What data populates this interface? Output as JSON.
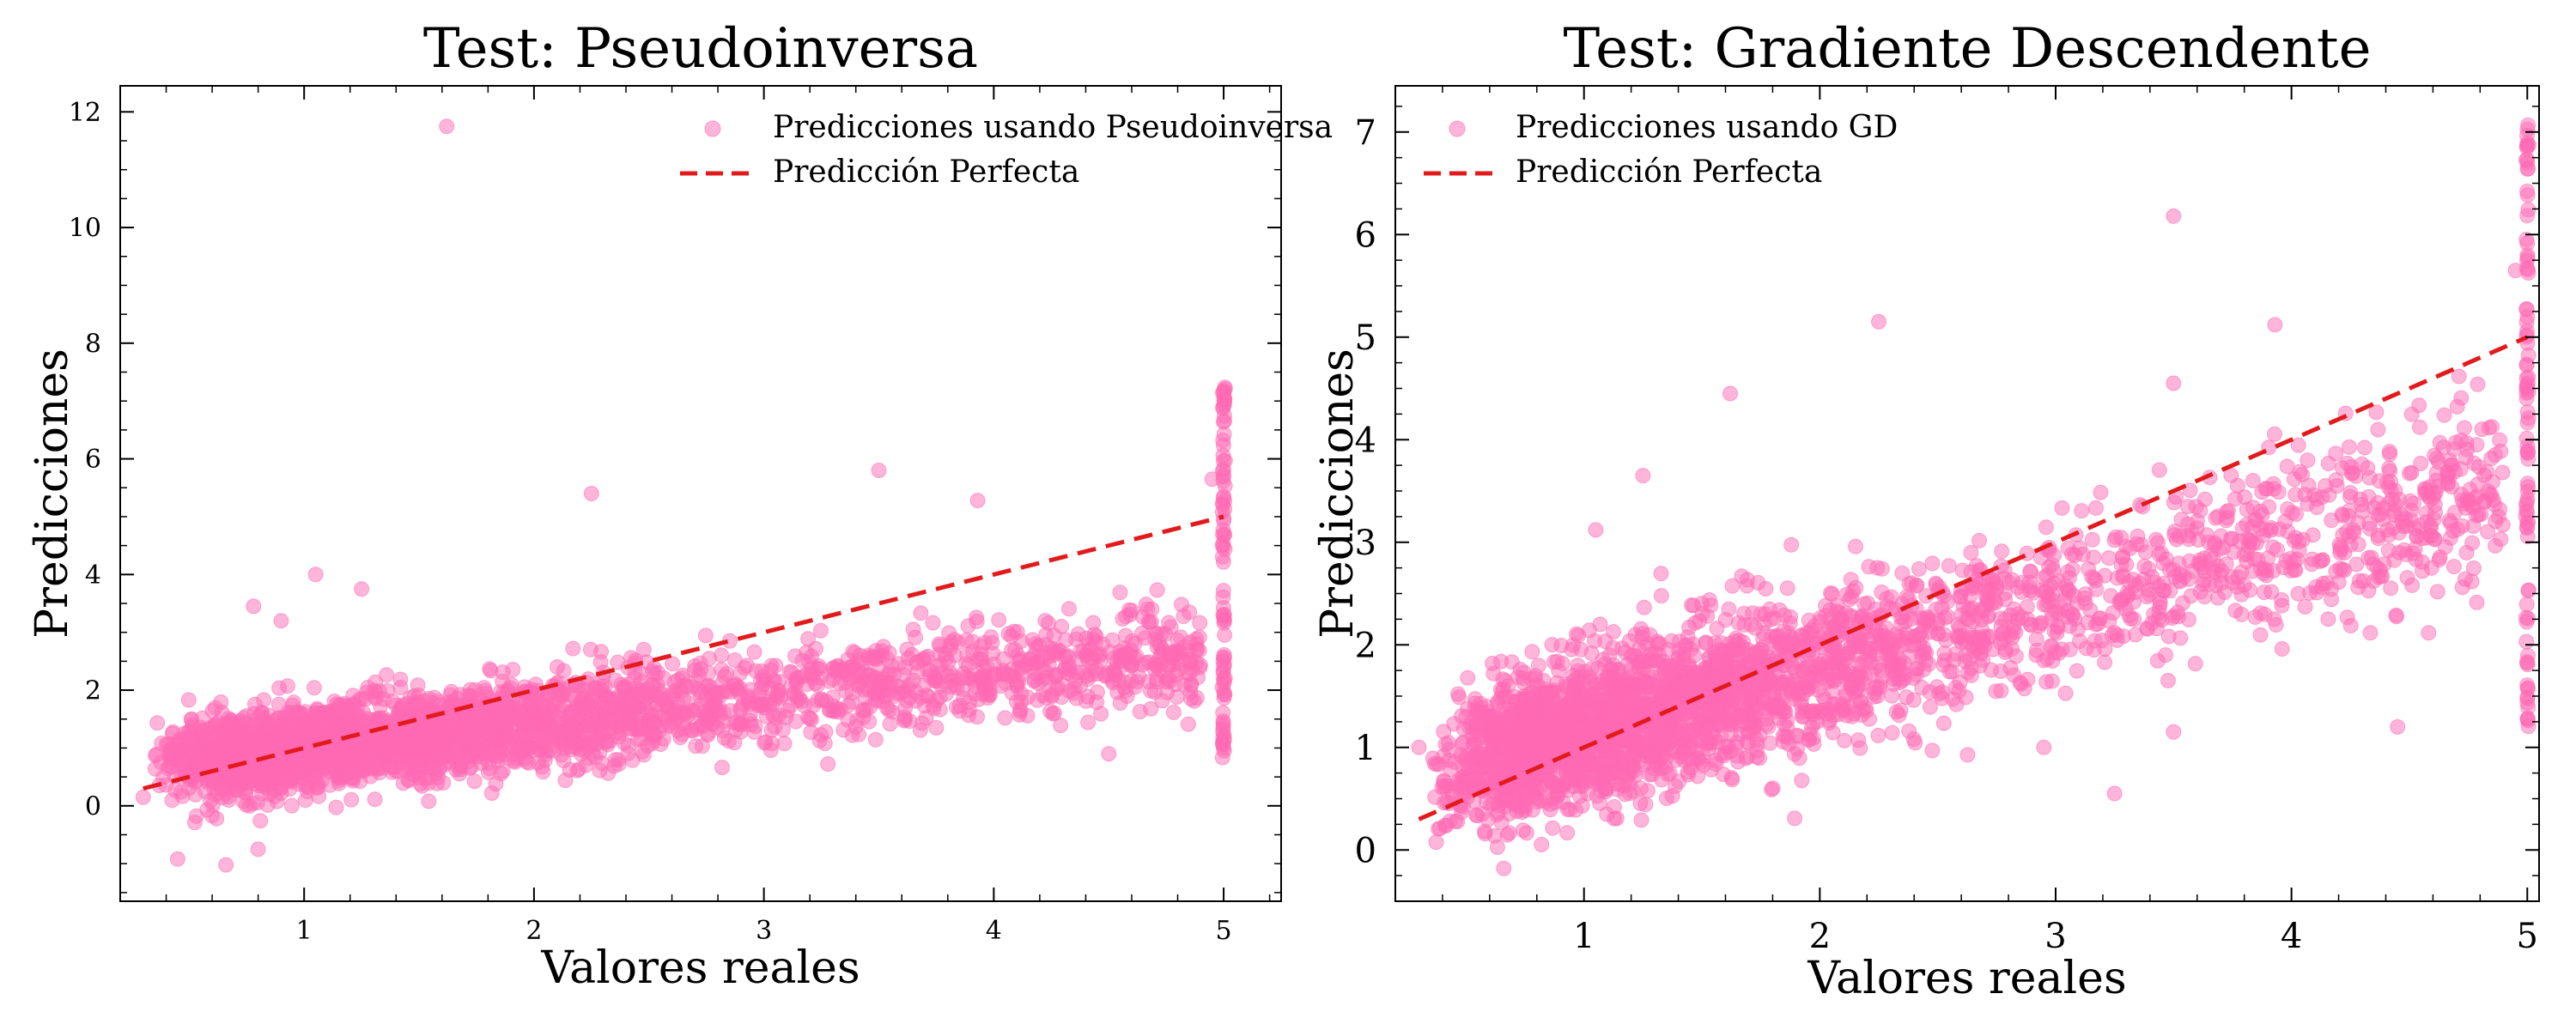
{
  "chart_data": [
    {
      "type": "scatter",
      "title": "Test: Pseudoinversa",
      "xlabel": "Valores reales",
      "ylabel": "Predicciones",
      "xlim": [
        0.2,
        5.25
      ],
      "ylim": [
        -1.65,
        12.45
      ],
      "xticks": [
        1,
        2,
        3,
        4,
        5
      ],
      "yticks": [
        0,
        2,
        4,
        6,
        8,
        10,
        12
      ],
      "grid": false,
      "legend_position": "top-right",
      "marker_color": "#ff69b4",
      "marker_alpha": 0.5,
      "line_color": "#e31a1c",
      "series": [
        {
          "name": "Predicciones usando Pseudoinversa",
          "kind": "scatter",
          "trend": {
            "slope": 0.42,
            "intercept": 0.57,
            "noise": 0.42,
            "n_points": 3200
          },
          "points": [
            [
              1.62,
              11.75
            ],
            [
              2.25,
              5.4
            ],
            [
              3.5,
              5.8
            ],
            [
              3.93,
              5.28
            ],
            [
              0.45,
              -0.92
            ],
            [
              0.66,
              -1.02
            ],
            [
              0.8,
              -0.75
            ],
            [
              1.05,
              4.0
            ],
            [
              1.25,
              3.75
            ],
            [
              0.78,
              3.45
            ],
            [
              0.9,
              3.2
            ],
            [
              4.95,
              5.65
            ],
            [
              4.5,
              0.9
            ],
            [
              3.75,
              1.35
            ],
            [
              4.1,
              1.8
            ],
            [
              0.3,
              0.15
            ]
          ],
          "capped": {
            "x": 5.0,
            "y_min": 0.8,
            "y_max": 7.25,
            "n_points": 90
          }
        },
        {
          "name": "Predicción Perfecta",
          "kind": "line",
          "style": "dashed",
          "x": [
            0.3,
            5.0
          ],
          "y": [
            0.3,
            5.0
          ]
        }
      ]
    },
    {
      "type": "scatter",
      "title": "Test: Gradiente Descendente",
      "xlabel": "Valores reales",
      "ylabel": "Predicciones",
      "xlim": [
        0.2,
        5.05
      ],
      "ylim": [
        -0.5,
        7.45
      ],
      "xticks": [
        1,
        2,
        3,
        4,
        5
      ],
      "yticks": [
        0,
        1,
        2,
        3,
        4,
        5,
        6,
        7
      ],
      "grid": false,
      "legend_position": "top-left",
      "marker_color": "#ff69b4",
      "marker_alpha": 0.5,
      "line_color": "#e31a1c",
      "series": [
        {
          "name": "Predicciones usando GD",
          "kind": "scatter",
          "trend": {
            "slope": 0.62,
            "intercept": 0.55,
            "noise": 0.42,
            "n_points": 3200
          },
          "points": [
            [
              3.5,
              6.18
            ],
            [
              2.25,
              5.15
            ],
            [
              3.93,
              5.12
            ],
            [
              1.62,
              4.45
            ],
            [
              0.66,
              -0.18
            ],
            [
              4.95,
              5.65
            ],
            [
              1.05,
              3.12
            ],
            [
              1.25,
              3.65
            ],
            [
              3.5,
              4.55
            ],
            [
              3.25,
              0.55
            ],
            [
              4.45,
              1.2
            ],
            [
              2.95,
              1.0
            ],
            [
              0.3,
              1.0
            ],
            [
              3.5,
              1.15
            ]
          ],
          "capped": {
            "x": 5.0,
            "y_min": 1.2,
            "y_max": 7.1,
            "n_points": 90
          }
        },
        {
          "name": "Predicción Perfecta",
          "kind": "line",
          "style": "dashed",
          "x": [
            0.3,
            5.0
          ],
          "y": [
            0.3,
            5.0
          ]
        }
      ]
    }
  ]
}
